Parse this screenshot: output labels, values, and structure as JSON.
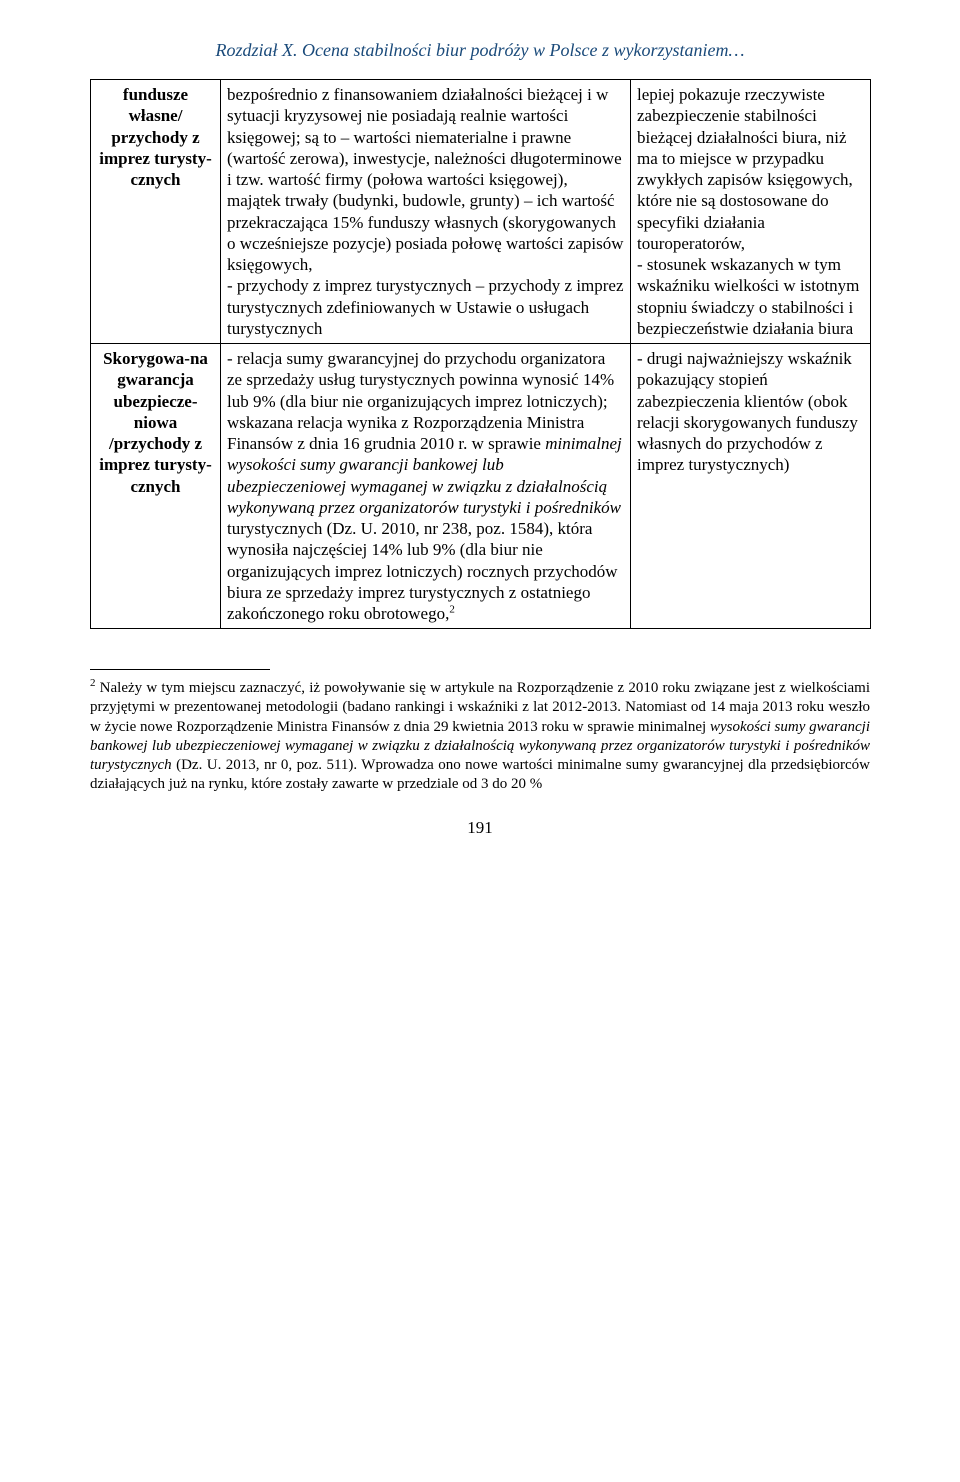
{
  "header": {
    "title": "Rozdział X. Ocena stabilności biur podróży w Polsce z wykorzystaniem…"
  },
  "table": {
    "rows": [
      {
        "label": "fundusze własne/ przychody z imprez turysty-cznych",
        "desc": "bezpośrednio z finansowaniem działalności bieżącej i w sytuacji kryzysowej nie posiadają realnie wartości księgowej; są to – wartości niematerialne i prawne (wartość zerowa), inwestycje, należności długoterminowe i tzw. wartość firmy (połowa wartości księgowej), majątek trwały (budynki, budowle, grunty) – ich wartość przekraczająca 15% funduszy własnych (skorygowanych o wcześniejsze pozycje) posiada połowę wartości zapisów księgowych,\n- przychody z imprez turystycznych – przychody z imprez turystycznych zdefiniowanych w Ustawie o usługach turystycznych",
        "remark": "lepiej pokazuje rzeczywiste zabezpieczenie stabilności bieżącej działalności biura, niż ma to miejsce w przypadku zwykłych zapisów księgowych, które nie są dostosowane do specyfiki działania touroperatorów,\n- stosunek wskazanych w tym wskaźniku wielkości w istotnym stopniu świadczy o stabilności i bezpieczeństwie działania biura"
      },
      {
        "label": "Skorygowa-na gwarancja ubezpiecze-niowa /przychody z imprez turysty-cznych",
        "desc_prefix": "- relacja sumy gwarancyjnej do przychodu organizatora ze sprzedaży usług turystycznych powinna wynosić 14% lub 9% (dla biur nie organizujących imprez lotniczych); wskazana relacja wynika z Rozporządzenia Ministra Finansów z dnia 16 grudnia 2010 r. w sprawie ",
        "desc_italic": "minimalnej wysokości sumy gwarancji bankowej lub ubezpieczeniowej wymaganej w związku z działalnością wykonywaną przez organizatorów turystyki i pośredników",
        "desc_suffix_a": " turystycznych (Dz. U. 2010, nr 238, poz. 1584), która wynosiła najczęściej 14% lub 9% (dla biur nie organizujących imprez lotniczych) rocznych przychodów biura ze sprzedaży imprez turystycznych z ostatniego zakończonego roku obrotowego,",
        "desc_sup": "2",
        "remark": "- drugi najważniejszy wskaźnik pokazujący stopień zabezpieczenia klientów (obok relacji skorygowanych funduszy własnych do przychodów z imprez turystycznych)"
      }
    ]
  },
  "footnote": {
    "marker": "2",
    "text_a": " Należy w tym miejscu zaznaczyć, iż powoływanie się w artykule na Rozporządzenie z 2010 roku związane jest z wielkościami przyjętymi w prezentowanej metodologii (badano rankingi i wskaźniki z lat 2012-2013. Natomiast od 14 maja 2013 roku weszło w życie nowe Rozporządzenie Ministra Finansów z dnia 29 kwietnia 2013 roku w sprawie minimalnej ",
    "text_italic": "wysokości sumy gwarancji bankowej lub ubezpieczeniowej wymaganej w związku z działalnością wykonywaną przez organizatorów turystyki i pośredników turystycznych",
    "text_b": " (Dz. U. 2013, nr 0, poz. 511). Wprowadza ono nowe wartości minimalne sumy gwarancyjnej dla przedsiębiorców działających już na rynku, które zostały zawarte w przedziale od 3 do 20 %"
  },
  "page_number": "191"
}
